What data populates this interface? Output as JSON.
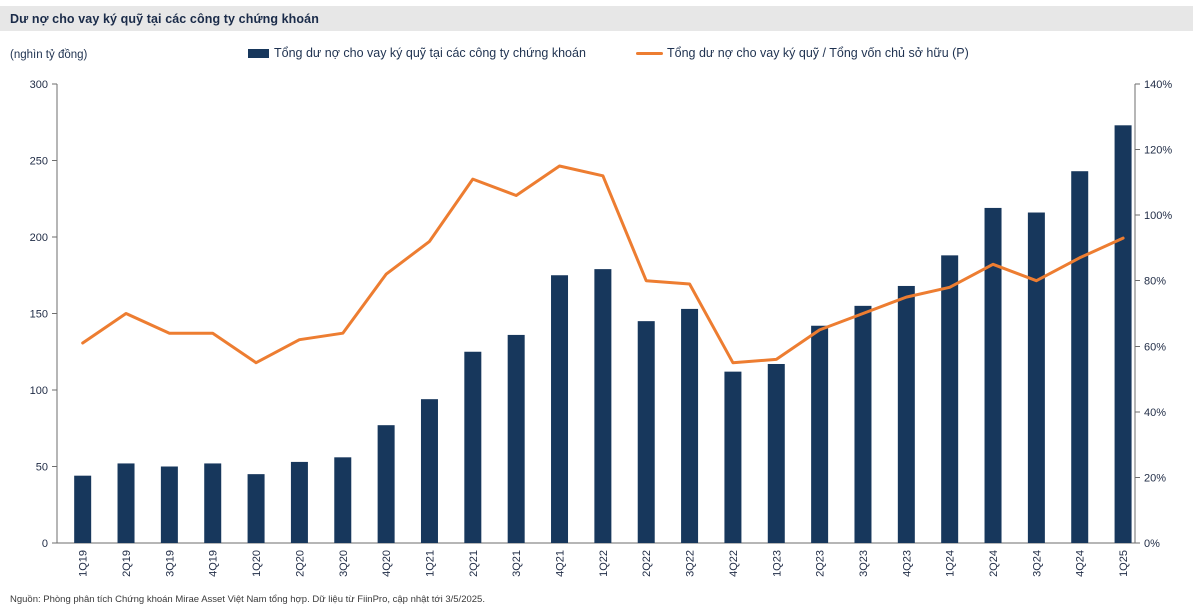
{
  "header": {
    "title": "Dư nợ cho vay ký quỹ tại các công ty chứng khoán"
  },
  "axis_unit_label": "(nghìn tỷ đồng)",
  "legend": {
    "bars_label": "Tổng dư nợ cho vay ký quỹ tại các công ty chứng khoán",
    "line_label": "Tổng dư nợ cho vay ký quỹ / Tổng vốn chủ sở hữu (P)"
  },
  "footer": {
    "source": "Nguồn: Phòng phân tích Chứng khoán Mirae Asset Việt Nam tổng hợp. Dữ liệu từ FiinPro, cập nhật tới 3/5/2025."
  },
  "colors": {
    "bar_navy": "#17375c",
    "line_orange": "#ed7d31",
    "title_band_bg": "#e7e7e7",
    "axis_gray": "#6e6e6e",
    "text_navy": "#1f3250"
  },
  "chart_data": {
    "type": "bar",
    "combo": "bar+line",
    "categories": [
      "1Q19",
      "2Q19",
      "3Q19",
      "4Q19",
      "1Q20",
      "2Q20",
      "3Q20",
      "4Q20",
      "1Q21",
      "2Q21",
      "3Q21",
      "4Q21",
      "1Q22",
      "2Q22",
      "3Q22",
      "4Q22",
      "1Q23",
      "2Q23",
      "3Q23",
      "4Q23",
      "1Q24",
      "2Q24",
      "3Q24",
      "4Q24",
      "1Q25"
    ],
    "series": [
      {
        "name": "Tổng dư nợ cho vay ký quỹ tại các công ty chứng khoán",
        "type": "bar",
        "axis": "left",
        "unit": "nghìn tỷ đồng",
        "color": "#17375c",
        "values": [
          44,
          52,
          50,
          52,
          45,
          53,
          56,
          77,
          94,
          125,
          136,
          175,
          179,
          145,
          153,
          112,
          117,
          142,
          155,
          168,
          188,
          219,
          216,
          243,
          273
        ]
      },
      {
        "name": "Tổng dư nợ cho vay ký quỹ / Tổng vốn chủ sở hữu (P)",
        "type": "line",
        "axis": "right",
        "unit": "%",
        "color": "#ed7d31",
        "values": [
          61,
          70,
          64,
          64,
          55,
          62,
          64,
          82,
          92,
          111,
          106,
          115,
          112,
          80,
          79,
          55,
          56,
          65,
          70,
          75,
          78,
          85,
          80,
          87,
          93
        ]
      }
    ],
    "y_left": {
      "min": 0,
      "max": 300,
      "tick_step": 50,
      "tick_labels": [
        "0",
        "50",
        "100",
        "150",
        "200",
        "250",
        "300"
      ]
    },
    "y_right": {
      "min": 0,
      "max": 140,
      "tick_step": 20,
      "tick_labels": [
        "0%",
        "20%",
        "40%",
        "60%",
        "80%",
        "100%",
        "120%",
        "140%"
      ]
    },
    "grid": false,
    "legend_position": "top",
    "x_label_rotation": -90
  }
}
